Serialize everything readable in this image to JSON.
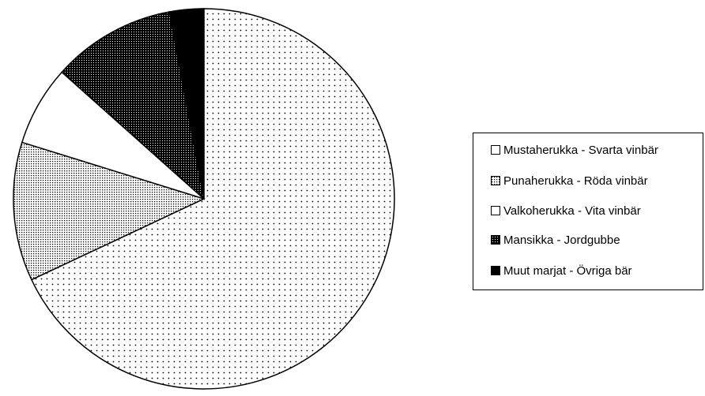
{
  "chart_data": {
    "type": "pie",
    "title": "",
    "legend_position": "right",
    "slices": [
      {
        "label": "Mustaherukka - Svarta vinbär",
        "value": 68.0,
        "pattern": "sparse-dots"
      },
      {
        "label": "Punaherukka - Röda vinbär",
        "value": 11.8,
        "pattern": "dense-dots"
      },
      {
        "label": "Valkoherukka - Vita vinbär",
        "value": 6.8,
        "pattern": "white"
      },
      {
        "label": "Mansikka - Jordgubbe",
        "value": 10.5,
        "pattern": "dark-dots"
      },
      {
        "label": "Muut marjat - Övriga bär",
        "value": 2.9,
        "pattern": "solid-black"
      }
    ]
  }
}
